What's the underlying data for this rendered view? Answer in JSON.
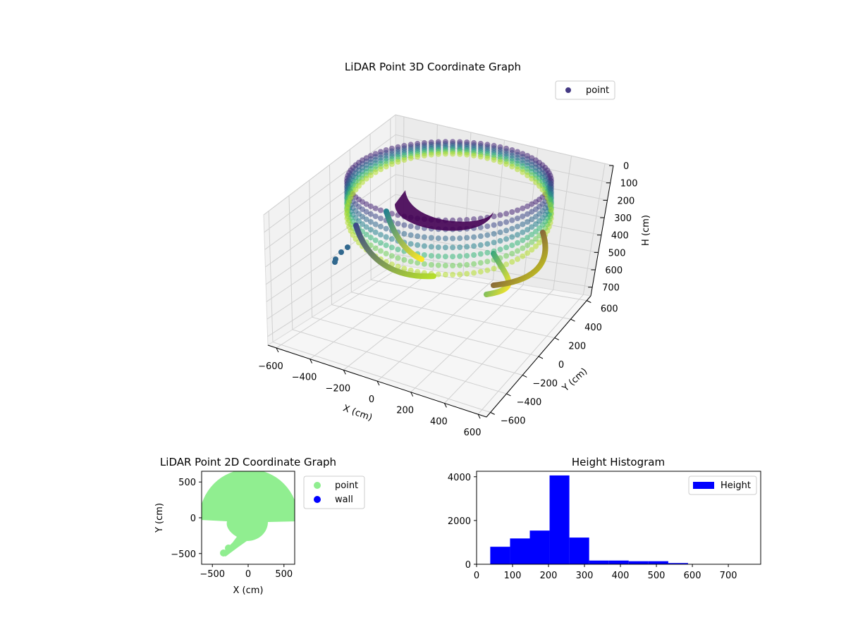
{
  "chart_data": [
    {
      "type": "scatter",
      "projection": "3d",
      "title": "LiDAR Point 3D Coordinate Graph",
      "xlabel": "X (cm)",
      "ylabel": "Y (cm)",
      "zlabel": "H (cm)",
      "xlim": [
        -650,
        650
      ],
      "ylim": [
        -650,
        650
      ],
      "zlim": [
        750,
        0
      ],
      "x_ticks": [
        "−600",
        "−400",
        "−200",
        "0",
        "200",
        "400",
        "600"
      ],
      "y_ticks": [
        "−600",
        "−400",
        "−200",
        "0",
        "200",
        "400",
        "600"
      ],
      "z_ticks": [
        "0",
        "100",
        "200",
        "300",
        "400",
        "500",
        "600",
        "700"
      ],
      "grid": true,
      "colormap": "viridis",
      "legend": {
        "position": "top-right",
        "entries": [
          {
            "label": "point",
            "color": "#443983"
          }
        ]
      }
    },
    {
      "type": "scatter",
      "title": "LiDAR Point 2D Coordinate Graph",
      "xlabel": "X (cm)",
      "ylabel": "Y (cm)",
      "xlim": [
        -650,
        650
      ],
      "ylim": [
        -650,
        650
      ],
      "x_ticks": [
        "−500",
        "0",
        "500"
      ],
      "y_ticks": [
        "500",
        "0",
        "−500"
      ],
      "legend": {
        "position": "outside-right",
        "entries": [
          {
            "label": "point",
            "color": "#90ee90"
          },
          {
            "label": "wall",
            "color": "#0000ff"
          }
        ]
      }
    },
    {
      "type": "histogram",
      "title": "Height Histogram",
      "xlabel": "",
      "ylabel": "",
      "xlim": [
        0,
        790
      ],
      "ylim": [
        0,
        4250
      ],
      "x_ticks": [
        0,
        100,
        200,
        300,
        400,
        500,
        600,
        700
      ],
      "y_ticks": [
        0,
        2000,
        4000
      ],
      "bin_edges": [
        38,
        93,
        148,
        203,
        258,
        313,
        368,
        423,
        478,
        533,
        588,
        643,
        698,
        753
      ],
      "counts": [
        800,
        1180,
        1540,
        4060,
        1220,
        170,
        170,
        140,
        140,
        55,
        15,
        15,
        10
      ],
      "legend": {
        "position": "top-right",
        "entries": [
          {
            "label": "Height",
            "color": "#0000ff"
          }
        ]
      }
    }
  ]
}
